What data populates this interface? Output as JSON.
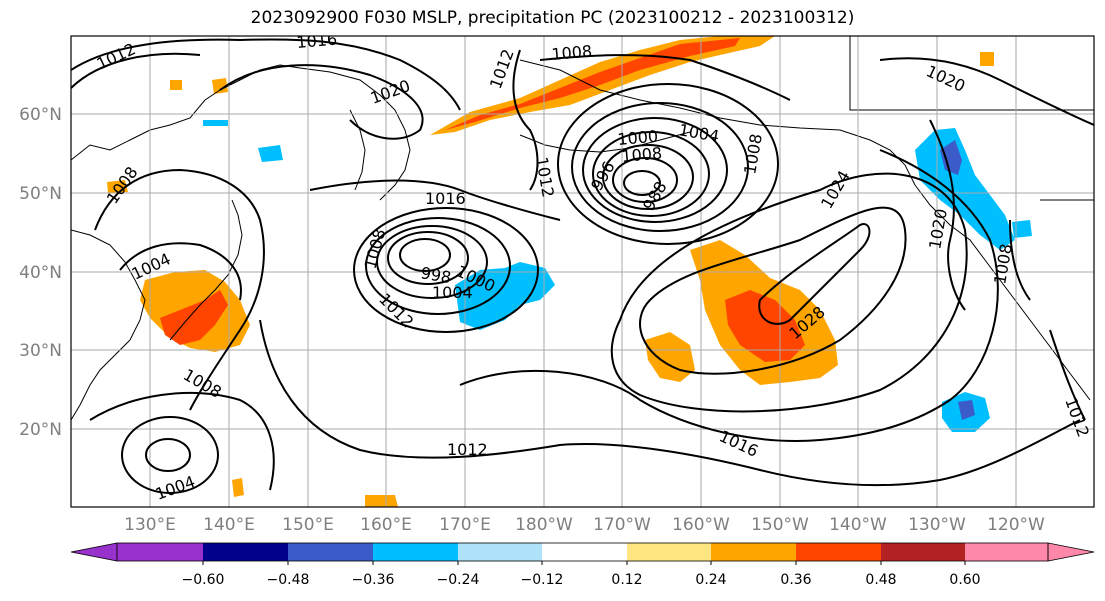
{
  "title": "2023092900 F030 MSLP, precipitation PC (2023100212 - 2023100312)",
  "latitude_labels": [
    "60°N",
    "50°N",
    "40°N",
    "30°N",
    "20°N"
  ],
  "longitude_labels": [
    "130°E",
    "140°E",
    "150°E",
    "160°E",
    "170°E",
    "180°W",
    "170°W",
    "160°W",
    "150°W",
    "140°W",
    "130°W",
    "120°W"
  ],
  "isobar_labels": [
    "1012",
    "1016",
    "1008",
    "1012",
    "1020",
    "1008",
    "1016",
    "1004",
    "1008",
    "998",
    "1000",
    "1004",
    "1012",
    "1000",
    "1004",
    "1008",
    "996",
    "988",
    "1012",
    "1008",
    "1024",
    "1028",
    "1020",
    "1020",
    "1008",
    "1016",
    "1012",
    "1008",
    "1004",
    "1012"
  ],
  "colorbar": {
    "ticks": [
      "−0.60",
      "−0.48",
      "−0.36",
      "−0.24",
      "−0.12",
      "0.12",
      "0.24",
      "0.36",
      "0.48",
      "0.60"
    ],
    "colors": [
      "#9932cc",
      "#00008b",
      "#3a5bc8",
      "#00bfff",
      "#afe3fb",
      "#ffffff",
      "#ffe680",
      "#ffa500",
      "#ff4500",
      "#b22222",
      "#ff88aa"
    ]
  },
  "colors": {
    "land_coast": "#000000",
    "grid": "#a9a9a9",
    "isobar": "#000000"
  }
}
